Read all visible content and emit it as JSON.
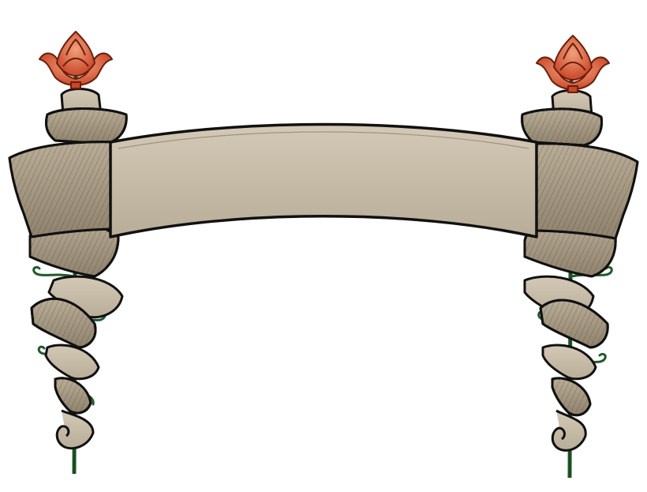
{
  "banner": {
    "text": ""
  },
  "colors": {
    "background": "#ffffff",
    "parchment": "#c8bda9",
    "parchment_dark": "#a89c86",
    "parchment_light": "#d8cfbe",
    "outline": "#111111",
    "stem": "#1f5a2a",
    "flower": "#e0623a",
    "flower_dark": "#b23a1f"
  },
  "icons": {
    "left_ornament": "flower-staff-icon",
    "right_ornament": "flower-staff-icon"
  }
}
